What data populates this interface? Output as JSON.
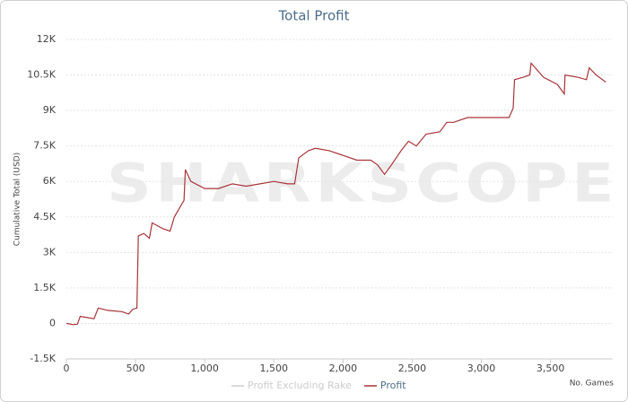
{
  "chart_data": {
    "type": "line",
    "title": "Total Profit",
    "y_label": "Cumulative Total (USD)",
    "x_label": "No. Games",
    "watermark": "SHARKSCOPE",
    "xlim": [
      0,
      3950
    ],
    "xticks": [
      0,
      500,
      {
        "value": 1000,
        "label": "1,000"
      },
      {
        "value": 1500,
        "label": "1,500"
      },
      {
        "value": 2000,
        "label": "2,000"
      },
      {
        "value": 2500,
        "label": "2,500"
      },
      {
        "value": 3000,
        "label": "3,000"
      },
      {
        "value": 3500,
        "label": "3,500"
      }
    ],
    "ylim": [
      -1500,
      12000
    ],
    "yticks": [
      {
        "value": -1500,
        "label": "-1.5K"
      },
      0,
      {
        "value": 1500,
        "label": "1.5K"
      },
      {
        "value": 3000,
        "label": "3K"
      },
      {
        "value": 4500,
        "label": "4.5K"
      },
      {
        "value": 6000,
        "label": "6K"
      },
      {
        "value": 7500,
        "label": "7.5K"
      },
      {
        "value": 9000,
        "label": "9K"
      },
      {
        "value": 10500,
        "label": "10.5K"
      },
      {
        "value": 12000,
        "label": "12K"
      }
    ],
    "grid": true,
    "x": [
      0,
      50,
      80,
      100,
      150,
      200,
      230,
      300,
      400,
      450,
      480,
      510,
      520,
      560,
      600,
      620,
      700,
      750,
      780,
      830,
      850,
      860,
      900,
      1000,
      1100,
      1200,
      1300,
      1400,
      1500,
      1600,
      1650,
      1680,
      1750,
      1800,
      1900,
      2000,
      2100,
      2200,
      2250,
      2300,
      2350,
      2420,
      2474,
      2530,
      2600,
      2700,
      2750,
      2800,
      2900,
      3000,
      3100,
      3200,
      3230,
      3240,
      3300,
      3350,
      3360,
      3450,
      3550,
      3600,
      3605,
      3700,
      3760,
      3780,
      3830,
      3900
    ],
    "series": [
      {
        "name": "Profit Excluding Rake",
        "color": "#cccccc",
        "visible": false
      },
      {
        "name": "Profit",
        "color": "#a8343a",
        "visible": true,
        "values": [
          0,
          -50,
          -30,
          300,
          250,
          200,
          650,
          550,
          500,
          400,
          600,
          650,
          3700,
          3800,
          3600,
          4250,
          4000,
          3900,
          4500,
          5000,
          5200,
          6500,
          6000,
          5700,
          5700,
          5900,
          5800,
          5900,
          6000,
          5900,
          5900,
          7000,
          7300,
          7400,
          7300,
          7100,
          6900,
          6900,
          6700,
          6300,
          6700,
          7300,
          7700,
          7500,
          8000,
          8100,
          8500,
          8500,
          8700,
          8700,
          8700,
          8700,
          9100,
          10300,
          10400,
          10500,
          11000,
          10400,
          10100,
          9700,
          10500,
          10400,
          10300,
          10800,
          10500,
          10200
        ]
      }
    ]
  }
}
